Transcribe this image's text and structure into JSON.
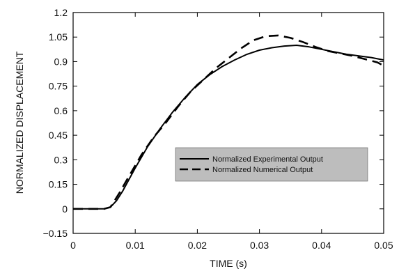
{
  "chart_data": {
    "type": "line",
    "title": "",
    "xlabel": "TIME (s)",
    "ylabel": "NORMALIZED DISPLACEMENT",
    "xlim": [
      0,
      0.05
    ],
    "ylim": [
      -0.15,
      1.2
    ],
    "xticks": [
      0,
      0.01,
      0.02,
      0.03,
      0.04,
      0.05
    ],
    "xtick_labels": [
      "0",
      "0.01",
      "0.02",
      "0.03",
      "0.04",
      "0.05"
    ],
    "yticks": [
      -0.15,
      0,
      0.15,
      0.3,
      0.45,
      0.6,
      0.75,
      0.9,
      1.05,
      1.2
    ],
    "ytick_labels": [
      "−0.15",
      "0",
      "0.15",
      "0.3",
      "0.45",
      "0.6",
      "0.75",
      "0.9",
      "1.05",
      "1.2"
    ],
    "grid": false,
    "legend": {
      "placement": "center-right",
      "background": "#bdbdbd"
    },
    "series": [
      {
        "name": "Normalized Experimental Output",
        "style": "solid",
        "color": "#000000",
        "x": [
          0,
          0.005,
          0.006,
          0.007,
          0.008,
          0.01,
          0.012,
          0.014,
          0.016,
          0.018,
          0.02,
          0.022,
          0.024,
          0.026,
          0.028,
          0.03,
          0.032,
          0.034,
          0.036,
          0.038,
          0.04,
          0.042,
          0.044,
          0.046,
          0.048,
          0.05
        ],
        "y": [
          0,
          0,
          0.01,
          0.05,
          0.11,
          0.25,
          0.38,
          0.49,
          0.59,
          0.68,
          0.76,
          0.82,
          0.87,
          0.91,
          0.945,
          0.97,
          0.985,
          0.995,
          1.0,
          0.99,
          0.975,
          0.96,
          0.945,
          0.935,
          0.925,
          0.91
        ]
      },
      {
        "name": "Normalized Numerical Output",
        "style": "dashed",
        "color": "#000000",
        "x": [
          0,
          0.005,
          0.006,
          0.0065,
          0.0075,
          0.009,
          0.011,
          0.013,
          0.015,
          0.017,
          0.019,
          0.021,
          0.023,
          0.025,
          0.027,
          0.029,
          0.031,
          0.033,
          0.035,
          0.037,
          0.039,
          0.041,
          0.043,
          0.045,
          0.047,
          0.049,
          0.05
        ],
        "y": [
          0,
          0,
          0.01,
          0.04,
          0.1,
          0.2,
          0.33,
          0.44,
          0.53,
          0.63,
          0.72,
          0.79,
          0.86,
          0.92,
          0.98,
          1.03,
          1.055,
          1.06,
          1.045,
          1.02,
          0.99,
          0.965,
          0.95,
          0.935,
          0.915,
          0.895,
          0.875
        ]
      }
    ]
  }
}
